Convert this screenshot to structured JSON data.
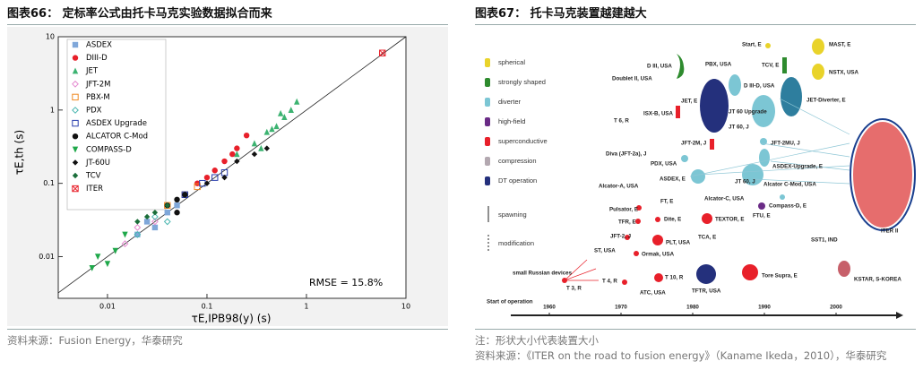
{
  "chart_data": {
    "type": "scatter",
    "caption": "图表66：  定标率公式由托卡马克实验数据拟合而来",
    "x_label": "τE,IPB98(y) (s)",
    "y_label": "τE,th (s)",
    "annotation": "RMSE = 15.8%",
    "xlim": [
      0.0032,
      10
    ],
    "ylim": [
      0.0027,
      10
    ],
    "xticks": [
      0.01,
      0.1,
      1,
      10
    ],
    "yticks": [
      0.01,
      0.1,
      1,
      10
    ],
    "log_x": true,
    "log_y": true,
    "diagonal": true,
    "legend": "upper-left",
    "series": [
      {
        "name": "ASDEX",
        "color": "#7fa7d9",
        "marker": "square",
        "x": [
          0.02,
          0.03,
          0.04,
          0.025,
          0.05
        ],
        "values": [
          0.02,
          0.025,
          0.04,
          0.03,
          0.05
        ]
      },
      {
        "name": "DIII-D",
        "color": "#e8202a",
        "marker": "circle",
        "x": [
          0.08,
          0.12,
          0.15,
          0.2,
          0.25,
          0.1,
          0.18
        ],
        "values": [
          0.1,
          0.15,
          0.2,
          0.3,
          0.45,
          0.12,
          0.25
        ]
      },
      {
        "name": "JET",
        "color": "#3cb371",
        "marker": "triangle",
        "x": [
          0.2,
          0.3,
          0.4,
          0.5,
          0.6,
          0.7,
          0.8,
          0.35,
          0.45,
          0.55
        ],
        "values": [
          0.25,
          0.35,
          0.5,
          0.6,
          0.8,
          1.0,
          1.3,
          0.3,
          0.55,
          0.9
        ]
      },
      {
        "name": "JFT-2M",
        "color": "#e58ad0",
        "marker": "diamond-open",
        "x": [
          0.015,
          0.02,
          0.03
        ],
        "values": [
          0.015,
          0.025,
          0.03
        ]
      },
      {
        "name": "PBX-M",
        "color": "#f08a24",
        "marker": "square-open",
        "x": [
          0.04,
          0.06,
          0.08
        ],
        "values": [
          0.05,
          0.07,
          0.09
        ]
      },
      {
        "name": "PDX",
        "color": "#49b6b0",
        "marker": "diamond-open",
        "x": [
          0.02,
          0.03,
          0.04
        ],
        "values": [
          0.02,
          0.035,
          0.03
        ]
      },
      {
        "name": "ASDEX Upgrade",
        "color": "#2a3fae",
        "marker": "square-open",
        "x": [
          0.06,
          0.09,
          0.12,
          0.15
        ],
        "values": [
          0.07,
          0.1,
          0.12,
          0.14
        ]
      },
      {
        "name": "ALCATOR C-Mod",
        "color": "#111111",
        "marker": "circle",
        "x": [
          0.04,
          0.05,
          0.06,
          0.05
        ],
        "values": [
          0.05,
          0.06,
          0.07,
          0.04
        ]
      },
      {
        "name": "COMPASS-D",
        "color": "#1fa84a",
        "marker": "triangle-down",
        "x": [
          0.007,
          0.01,
          0.008,
          0.012,
          0.015
        ],
        "values": [
          0.007,
          0.008,
          0.01,
          0.012,
          0.02
        ]
      },
      {
        "name": "JT-60U",
        "color": "#111111",
        "marker": "diamond",
        "x": [
          0.1,
          0.15,
          0.2,
          0.3,
          0.4
        ],
        "values": [
          0.1,
          0.12,
          0.2,
          0.25,
          0.3
        ]
      },
      {
        "name": "TCV",
        "color": "#1b6e3a",
        "marker": "diamond",
        "x": [
          0.02,
          0.03,
          0.04,
          0.025
        ],
        "values": [
          0.03,
          0.04,
          0.05,
          0.035
        ]
      },
      {
        "name": "ITER",
        "color": "#e8202a",
        "marker": "square-x",
        "x": [
          5.8
        ],
        "values": [
          6.0
        ]
      }
    ],
    "source": "资料来源：Fusion Energy，华泰研究"
  },
  "right": {
    "caption": "图表67：  托卡马克装置越建越大",
    "legend": [
      "spherical",
      "strongly shaped",
      "diverter",
      "high-field",
      "superconductive",
      "compression",
      "DT operation",
      "spawning",
      "modification"
    ],
    "timeline_label": "Start of operation",
    "years": [
      1960,
      1970,
      1980,
      1990,
      2000
    ],
    "devices": [
      "Start, E",
      "MAST, E",
      "PBX, USA",
      "TCV, E",
      "NSTX, USA",
      "D III, USA",
      "Doublet II, USA",
      "D III-D, USA",
      "JET, E",
      "JT 60 Upgrade",
      "JET-Diverter, E",
      "ISX-B, USA",
      "T 6, R",
      "JT 60, J",
      "JFT-2M, J",
      "JFT-2MU, J",
      "Diva (JFT-2a), J",
      "PDX, USA",
      "ASDEX-Upgrade, E",
      "ASDEX, E",
      "JT 60, J",
      "Alcator C-Mod, USA",
      "Alcator-A, USA",
      "FT, E",
      "Alcator-C, USA",
      "Compass-D, E",
      "Pulsator, E",
      "TFR, E",
      "Dite, E",
      "TEXTOR, E",
      "FTU, E",
      "JFT-2, J",
      "PLT, USA",
      "TCA, E",
      "ST, USA",
      "Ormak, USA",
      "small Russian devices",
      "T 3, R",
      "T 4, R",
      "T 10, R",
      "ATC, USA",
      "TFTR, USA",
      "Tore Supra, E",
      "SST1, IND",
      "ITER II",
      "KSTAR, S-KOREA"
    ],
    "note": "注：形状大小代表装置大小",
    "source": "资料来源：《ITER on the road to fusion energy》（Kaname Ikeda，2010），华泰研究"
  }
}
